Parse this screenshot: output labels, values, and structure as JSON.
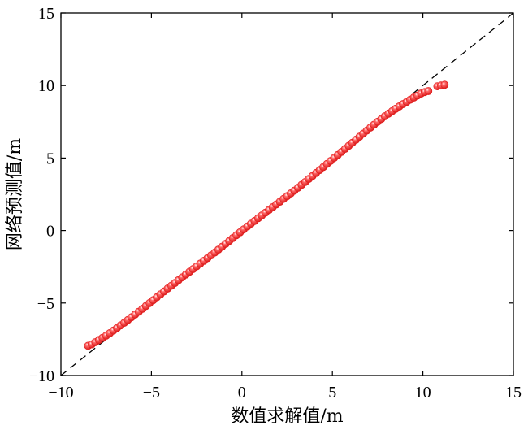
{
  "chart_data": {
    "type": "scatter",
    "title": "",
    "xlabel": "数值求解值/m",
    "ylabel": "网络预测值/m",
    "xlim": [
      -10,
      15
    ],
    "ylim": [
      -10,
      15
    ],
    "xticks": [
      -10,
      -5,
      0,
      5,
      10,
      15
    ],
    "yticks": [
      -10,
      -5,
      0,
      5,
      10,
      15
    ],
    "xtick_labels": [
      "−10",
      "−5",
      "0",
      "5",
      "10",
      "15"
    ],
    "ytick_labels": [
      "−10",
      "−5",
      "0",
      "5",
      "10",
      "15"
    ],
    "grid": false,
    "legend": "none",
    "reference_line": {
      "style": "dashed",
      "color": "#000000",
      "x": [
        -10,
        15
      ],
      "y": [
        -10,
        15
      ]
    },
    "series": [
      {
        "marker_color": "#e01b1b",
        "highlight_color": "#ffffff",
        "points": [
          [
            -8.5,
            -7.95
          ],
          [
            -8.3,
            -7.85
          ],
          [
            -8.1,
            -7.7
          ],
          [
            -7.9,
            -7.55
          ],
          [
            -7.7,
            -7.4
          ],
          [
            -7.5,
            -7.25
          ],
          [
            -7.3,
            -7.08
          ],
          [
            -7.1,
            -6.9
          ],
          [
            -6.9,
            -6.72
          ],
          [
            -6.7,
            -6.54
          ],
          [
            -6.5,
            -6.36
          ],
          [
            -6.3,
            -6.17
          ],
          [
            -6.1,
            -5.98
          ],
          [
            -5.9,
            -5.79
          ],
          [
            -5.7,
            -5.6
          ],
          [
            -5.5,
            -5.4
          ],
          [
            -5.3,
            -5.2
          ],
          [
            -5.1,
            -5.0
          ],
          [
            -4.9,
            -4.8
          ],
          [
            -4.7,
            -4.6
          ],
          [
            -4.5,
            -4.4
          ],
          [
            -4.3,
            -4.2
          ],
          [
            -4.1,
            -4.0
          ],
          [
            -3.9,
            -3.81
          ],
          [
            -3.7,
            -3.62
          ],
          [
            -3.5,
            -3.42
          ],
          [
            -3.3,
            -3.23
          ],
          [
            -3.1,
            -3.04
          ],
          [
            -2.9,
            -2.85
          ],
          [
            -2.7,
            -2.66
          ],
          [
            -2.5,
            -2.47
          ],
          [
            -2.3,
            -2.28
          ],
          [
            -2.1,
            -2.09
          ],
          [
            -1.9,
            -1.9
          ],
          [
            -1.7,
            -1.71
          ],
          [
            -1.5,
            -1.52
          ],
          [
            -1.3,
            -1.32
          ],
          [
            -1.1,
            -1.12
          ],
          [
            -0.9,
            -0.92
          ],
          [
            -0.7,
            -0.72
          ],
          [
            -0.5,
            -0.52
          ],
          [
            -0.3,
            -0.32
          ],
          [
            -0.1,
            -0.12
          ],
          [
            0.1,
            0.08
          ],
          [
            0.3,
            0.28
          ],
          [
            0.5,
            0.47
          ],
          [
            0.7,
            0.66
          ],
          [
            0.9,
            0.85
          ],
          [
            1.1,
            1.04
          ],
          [
            1.3,
            1.23
          ],
          [
            1.5,
            1.42
          ],
          [
            1.7,
            1.61
          ],
          [
            1.9,
            1.8
          ],
          [
            2.1,
            1.99
          ],
          [
            2.3,
            2.18
          ],
          [
            2.5,
            2.37
          ],
          [
            2.7,
            2.56
          ],
          [
            2.9,
            2.75
          ],
          [
            3.1,
            2.95
          ],
          [
            3.3,
            3.15
          ],
          [
            3.5,
            3.35
          ],
          [
            3.7,
            3.56
          ],
          [
            3.9,
            3.76
          ],
          [
            4.1,
            3.97
          ],
          [
            4.3,
            4.17
          ],
          [
            4.5,
            4.38
          ],
          [
            4.7,
            4.59
          ],
          [
            4.9,
            4.8
          ],
          [
            5.1,
            5.01
          ],
          [
            5.3,
            5.21
          ],
          [
            5.5,
            5.42
          ],
          [
            5.7,
            5.63
          ],
          [
            5.9,
            5.84
          ],
          [
            6.1,
            6.05
          ],
          [
            6.3,
            6.26
          ],
          [
            6.5,
            6.47
          ],
          [
            6.7,
            6.68
          ],
          [
            6.9,
            6.89
          ],
          [
            7.1,
            7.1
          ],
          [
            7.3,
            7.3
          ],
          [
            7.5,
            7.5
          ],
          [
            7.7,
            7.69
          ],
          [
            7.9,
            7.88
          ],
          [
            8.1,
            8.06
          ],
          [
            8.3,
            8.23
          ],
          [
            8.5,
            8.4
          ],
          [
            8.7,
            8.56
          ],
          [
            8.9,
            8.72
          ],
          [
            9.1,
            8.87
          ],
          [
            9.3,
            9.02
          ],
          [
            9.5,
            9.17
          ],
          [
            9.7,
            9.31
          ],
          [
            9.9,
            9.45
          ],
          [
            10.1,
            9.55
          ],
          [
            10.3,
            9.62
          ],
          [
            10.8,
            9.95
          ],
          [
            11.0,
            10.0
          ],
          [
            11.2,
            10.05
          ]
        ]
      }
    ]
  }
}
